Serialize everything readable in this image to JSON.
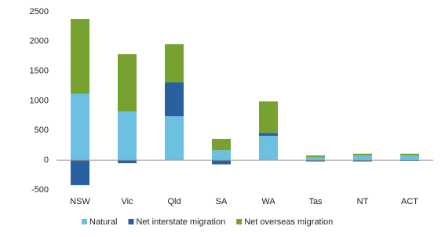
{
  "chart_data": {
    "type": "stacked_bar",
    "categories": [
      "NSW",
      "Vic",
      "Qld",
      "SA",
      "WA",
      "Tas",
      "NT",
      "ACT"
    ],
    "series": [
      {
        "name": "Natural",
        "color": "#6cc1e0",
        "values": [
          1120,
          820,
          740,
          170,
          410,
          50,
          80,
          80
        ]
      },
      {
        "name": "Net interstate migration",
        "color": "#2a5fa0",
        "values": [
          -420,
          -50,
          570,
          -70,
          50,
          -20,
          -20,
          -10
        ]
      },
      {
        "name": "Net overseas migration",
        "color": "#78a22f",
        "values": [
          1260,
          965,
          645,
          190,
          530,
          30,
          30,
          30
        ]
      }
    ],
    "ylim": [
      -500,
      2500
    ],
    "yticks": [
      -500,
      0,
      500,
      1000,
      1500,
      2000,
      2500
    ],
    "legend": "bottom"
  }
}
